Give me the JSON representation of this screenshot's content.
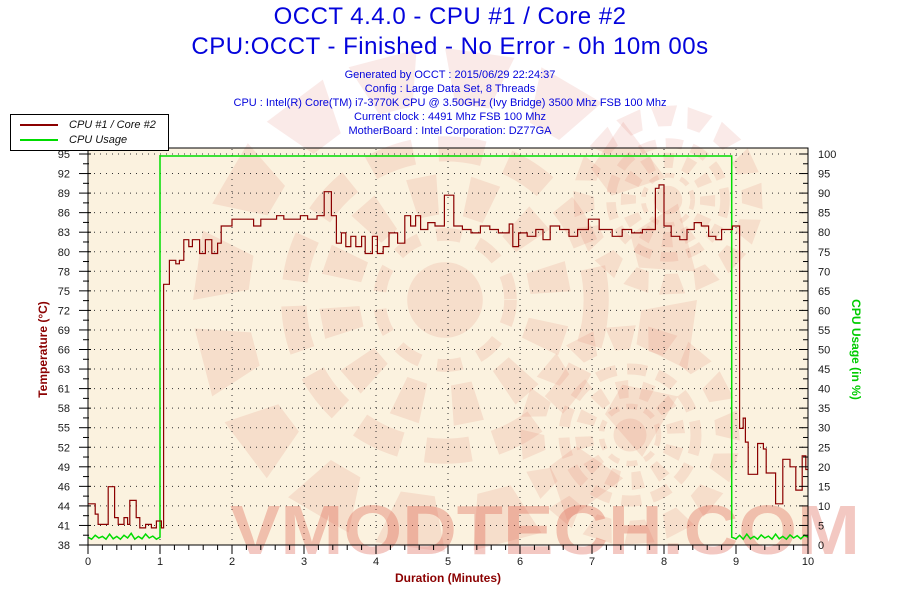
{
  "header": {
    "title_line1": "OCCT 4.4.0 - CPU #1 / Core #2",
    "title_line2": "CPU:OCCT - Finished - No Error - 0h 10m 00s",
    "title_color": "#0404DC",
    "info_lines": [
      "Generated by OCCT : 2015/06/29 22:24:37",
      "Config : Large Data Set, 8 Threads",
      "CPU : Intel(R) Core(TM) i7-3770K CPU @ 3.50GHz (Ivy Bridge) 3500 Mhz FSB 100 Mhz",
      "Current clock : 4491 Mhz FSB 100 Mhz",
      "MotherBoard : Intel Corporation: DZ77GA"
    ]
  },
  "legend": {
    "items": [
      {
        "label": "CPU #1 / Core #2",
        "color": "#8B0000"
      },
      {
        "label": "CPU Usage",
        "color": "#00DC00"
      }
    ]
  },
  "chart_data": {
    "type": "line",
    "title": "OCCT 4.4.0 - CPU #1 / Core #2",
    "subtitle": "CPU:OCCT - Finished - No Error - 0h 10m 00s",
    "plot_bg": "#FBF2DF",
    "grid": "dotted",
    "legend_position": "top-left",
    "watermark_text": "VMODTECH.COM",
    "watermark_color": "#D95540",
    "x_axis": {
      "label": "Duration (Minutes)",
      "label_color": "#8B0000",
      "min": 0,
      "max": 10,
      "minor_step": 0.2,
      "tick_labels": [
        "0",
        "1",
        "2",
        "3",
        "4",
        "5",
        "6",
        "7",
        "8",
        "9",
        "10"
      ]
    },
    "y_left": {
      "label": "Temperature (°C)",
      "label_color": "#8B0000",
      "min": 38,
      "max": 95,
      "tick_labels": [
        "38",
        "41",
        "44",
        "46",
        "49",
        "52",
        "55",
        "58",
        "61",
        "63",
        "66",
        "69",
        "72",
        "75",
        "78",
        "80",
        "83",
        "86",
        "89",
        "92",
        "95"
      ]
    },
    "y_right": {
      "label": "CPU Usage (in %)",
      "label_color": "#00CC00",
      "min": 0,
      "max": 100,
      "tick_labels": [
        "0",
        "5",
        "10",
        "15",
        "20",
        "25",
        "30",
        "35",
        "40",
        "45",
        "50",
        "55",
        "60",
        "65",
        "70",
        "75",
        "80",
        "85",
        "90",
        "95",
        "100"
      ]
    },
    "series": [
      {
        "name": "CPU #1 / Core #2",
        "axis": "left",
        "color": "#8B0000",
        "points": [
          [
            0,
            44
          ],
          [
            0.1,
            44
          ],
          [
            0.1,
            42.5
          ],
          [
            0.14,
            42.5
          ],
          [
            0.14,
            41
          ],
          [
            0.28,
            41
          ],
          [
            0.28,
            46.5
          ],
          [
            0.37,
            46.5
          ],
          [
            0.37,
            42
          ],
          [
            0.42,
            42
          ],
          [
            0.42,
            41
          ],
          [
            0.5,
            41
          ],
          [
            0.5,
            42
          ],
          [
            0.55,
            42
          ],
          [
            0.55,
            41
          ],
          [
            0.58,
            41
          ],
          [
            0.58,
            44.5
          ],
          [
            0.67,
            44.5
          ],
          [
            0.67,
            42
          ],
          [
            0.72,
            42
          ],
          [
            0.72,
            40.5
          ],
          [
            0.8,
            40.5
          ],
          [
            0.8,
            41
          ],
          [
            0.88,
            41
          ],
          [
            0.88,
            40.5
          ],
          [
            0.95,
            40.5
          ],
          [
            0.95,
            41.5
          ],
          [
            1.02,
            41.5
          ],
          [
            1.02,
            40.5
          ],
          [
            1.05,
            40.5
          ],
          [
            1.05,
            76
          ],
          [
            1.13,
            76
          ],
          [
            1.13,
            79.5
          ],
          [
            1.22,
            79.5
          ],
          [
            1.22,
            79
          ],
          [
            1.27,
            79
          ],
          [
            1.27,
            79.5
          ],
          [
            1.33,
            79.5
          ],
          [
            1.33,
            82.5
          ],
          [
            1.4,
            82.5
          ],
          [
            1.4,
            81.5
          ],
          [
            1.45,
            81.5
          ],
          [
            1.45,
            82.5
          ],
          [
            1.55,
            82.5
          ],
          [
            1.55,
            80.5
          ],
          [
            1.63,
            80.5
          ],
          [
            1.63,
            82.5
          ],
          [
            1.72,
            82.5
          ],
          [
            1.72,
            80.5
          ],
          [
            1.8,
            80.5
          ],
          [
            1.8,
            82
          ],
          [
            1.85,
            82
          ],
          [
            1.85,
            84.5
          ],
          [
            2,
            84.5
          ],
          [
            2,
            85.5
          ],
          [
            2.3,
            85.5
          ],
          [
            2.3,
            84.5
          ],
          [
            2.4,
            84.5
          ],
          [
            2.4,
            85.5
          ],
          [
            2.62,
            85.5
          ],
          [
            2.62,
            86
          ],
          [
            2.72,
            86
          ],
          [
            2.72,
            85.5
          ],
          [
            2.95,
            85.5
          ],
          [
            2.95,
            86
          ],
          [
            3.05,
            86
          ],
          [
            3.05,
            85.5
          ],
          [
            3.18,
            85.5
          ],
          [
            3.18,
            86
          ],
          [
            3.28,
            86
          ],
          [
            3.28,
            89.5
          ],
          [
            3.38,
            89.5
          ],
          [
            3.38,
            86
          ],
          [
            3.45,
            86
          ],
          [
            3.45,
            82
          ],
          [
            3.52,
            82
          ],
          [
            3.52,
            83.5
          ],
          [
            3.58,
            83.5
          ],
          [
            3.58,
            81.5
          ],
          [
            3.65,
            81.5
          ],
          [
            3.65,
            83
          ],
          [
            3.72,
            83
          ],
          [
            3.72,
            81.5
          ],
          [
            3.8,
            81.5
          ],
          [
            3.8,
            83
          ],
          [
            3.85,
            83
          ],
          [
            3.85,
            80.5
          ],
          [
            3.95,
            80.5
          ],
          [
            3.95,
            83
          ],
          [
            4.02,
            83
          ],
          [
            4.02,
            80.5
          ],
          [
            4.1,
            80.5
          ],
          [
            4.1,
            81.5
          ],
          [
            4.18,
            81.5
          ],
          [
            4.18,
            83.5
          ],
          [
            4.3,
            83.5
          ],
          [
            4.3,
            82
          ],
          [
            4.4,
            82
          ],
          [
            4.4,
            86
          ],
          [
            4.48,
            86
          ],
          [
            4.48,
            84.5
          ],
          [
            4.55,
            84.5
          ],
          [
            4.55,
            86
          ],
          [
            4.62,
            86
          ],
          [
            4.62,
            84
          ],
          [
            4.72,
            84
          ],
          [
            4.72,
            85
          ],
          [
            4.82,
            85
          ],
          [
            4.82,
            84.5
          ],
          [
            4.95,
            84.5
          ],
          [
            4.95,
            89
          ],
          [
            5.08,
            89
          ],
          [
            5.08,
            84.5
          ],
          [
            5.2,
            84.5
          ],
          [
            5.2,
            84
          ],
          [
            5.32,
            84
          ],
          [
            5.32,
            83.5
          ],
          [
            5.45,
            83.5
          ],
          [
            5.45,
            84.5
          ],
          [
            5.58,
            84.5
          ],
          [
            5.58,
            84
          ],
          [
            5.7,
            84
          ],
          [
            5.7,
            83.5
          ],
          [
            5.85,
            83.5
          ],
          [
            5.85,
            84.8
          ],
          [
            5.9,
            84.8
          ],
          [
            5.9,
            81.5
          ],
          [
            5.98,
            81.5
          ],
          [
            5.98,
            83.5
          ],
          [
            6.1,
            83.5
          ],
          [
            6.1,
            83
          ],
          [
            6.22,
            83
          ],
          [
            6.22,
            84
          ],
          [
            6.32,
            84
          ],
          [
            6.32,
            82.5
          ],
          [
            6.42,
            82.5
          ],
          [
            6.42,
            84.5
          ],
          [
            6.55,
            84.5
          ],
          [
            6.55,
            84
          ],
          [
            6.68,
            84
          ],
          [
            6.68,
            83
          ],
          [
            6.8,
            83
          ],
          [
            6.8,
            84
          ],
          [
            6.95,
            84
          ],
          [
            6.95,
            85.5
          ],
          [
            7.1,
            85.5
          ],
          [
            7.1,
            84
          ],
          [
            7.28,
            84
          ],
          [
            7.28,
            83
          ],
          [
            7.42,
            83
          ],
          [
            7.42,
            84
          ],
          [
            7.55,
            84
          ],
          [
            7.55,
            83.5
          ],
          [
            7.7,
            83.5
          ],
          [
            7.7,
            84
          ],
          [
            7.88,
            84
          ],
          [
            7.88,
            90
          ],
          [
            7.93,
            90
          ],
          [
            7.93,
            90.5
          ],
          [
            8,
            90.5
          ],
          [
            8,
            84.5
          ],
          [
            8.1,
            84.5
          ],
          [
            8.1,
            83
          ],
          [
            8.22,
            83
          ],
          [
            8.22,
            82.5
          ],
          [
            8.32,
            82.5
          ],
          [
            8.32,
            84
          ],
          [
            8.42,
            84
          ],
          [
            8.42,
            85
          ],
          [
            8.52,
            85
          ],
          [
            8.52,
            84.5
          ],
          [
            8.62,
            84.5
          ],
          [
            8.62,
            83
          ],
          [
            8.72,
            83
          ],
          [
            8.72,
            82.5
          ],
          [
            8.8,
            82.5
          ],
          [
            8.8,
            84
          ],
          [
            8.95,
            84
          ],
          [
            8.95,
            84.5
          ],
          [
            9.05,
            84.5
          ],
          [
            9.05,
            55
          ],
          [
            9.1,
            55
          ],
          [
            9.1,
            56.5
          ],
          [
            9.13,
            56.5
          ],
          [
            9.13,
            53
          ],
          [
            9.17,
            53
          ],
          [
            9.17,
            48.3
          ],
          [
            9.3,
            48.3
          ],
          [
            9.3,
            52.8
          ],
          [
            9.38,
            52.8
          ],
          [
            9.38,
            52
          ],
          [
            9.42,
            52
          ],
          [
            9.42,
            48.5
          ],
          [
            9.55,
            48.5
          ],
          [
            9.55,
            44
          ],
          [
            9.65,
            44
          ],
          [
            9.65,
            50.5
          ],
          [
            9.75,
            50.5
          ],
          [
            9.75,
            49.4
          ],
          [
            9.83,
            49.4
          ],
          [
            9.83,
            46
          ],
          [
            9.92,
            46
          ],
          [
            9.92,
            51
          ],
          [
            9.97,
            51
          ],
          [
            9.97,
            49
          ],
          [
            10,
            49
          ]
        ]
      },
      {
        "name": "CPU Usage",
        "axis": "right",
        "color": "#00DC00",
        "points": [
          [
            0,
            2
          ],
          [
            0.05,
            1.5
          ],
          [
            0.1,
            2.5
          ],
          [
            0.15,
            1.8
          ],
          [
            0.2,
            2.2
          ],
          [
            0.25,
            1.5
          ],
          [
            0.3,
            2.8
          ],
          [
            0.35,
            1.6
          ],
          [
            0.4,
            2.2
          ],
          [
            0.45,
            1.5
          ],
          [
            0.5,
            2.5
          ],
          [
            0.55,
            1.8
          ],
          [
            0.6,
            3
          ],
          [
            0.65,
            1.5
          ],
          [
            0.7,
            2.2
          ],
          [
            0.75,
            1.6
          ],
          [
            0.8,
            2.8
          ],
          [
            0.85,
            1.8
          ],
          [
            0.9,
            2.3
          ],
          [
            0.95,
            1.5
          ],
          [
            1,
            2
          ],
          [
            1,
            100
          ],
          [
            8.94,
            100
          ],
          [
            8.94,
            2
          ],
          [
            9,
            1.6
          ],
          [
            9.05,
            2.5
          ],
          [
            9.1,
            1.5
          ],
          [
            9.15,
            2.8
          ],
          [
            9.2,
            1.6
          ],
          [
            9.25,
            2.2
          ],
          [
            9.3,
            1.5
          ],
          [
            9.35,
            2.6
          ],
          [
            9.4,
            1.8
          ],
          [
            9.45,
            2.3
          ],
          [
            9.5,
            1.5
          ],
          [
            9.55,
            2.8
          ],
          [
            9.6,
            1.6
          ],
          [
            9.65,
            2.2
          ],
          [
            9.7,
            1.5
          ],
          [
            9.75,
            2.6
          ],
          [
            9.8,
            1.8
          ],
          [
            9.85,
            2.4
          ],
          [
            9.9,
            1.6
          ],
          [
            9.95,
            2.5
          ],
          [
            10,
            2
          ]
        ]
      }
    ]
  }
}
